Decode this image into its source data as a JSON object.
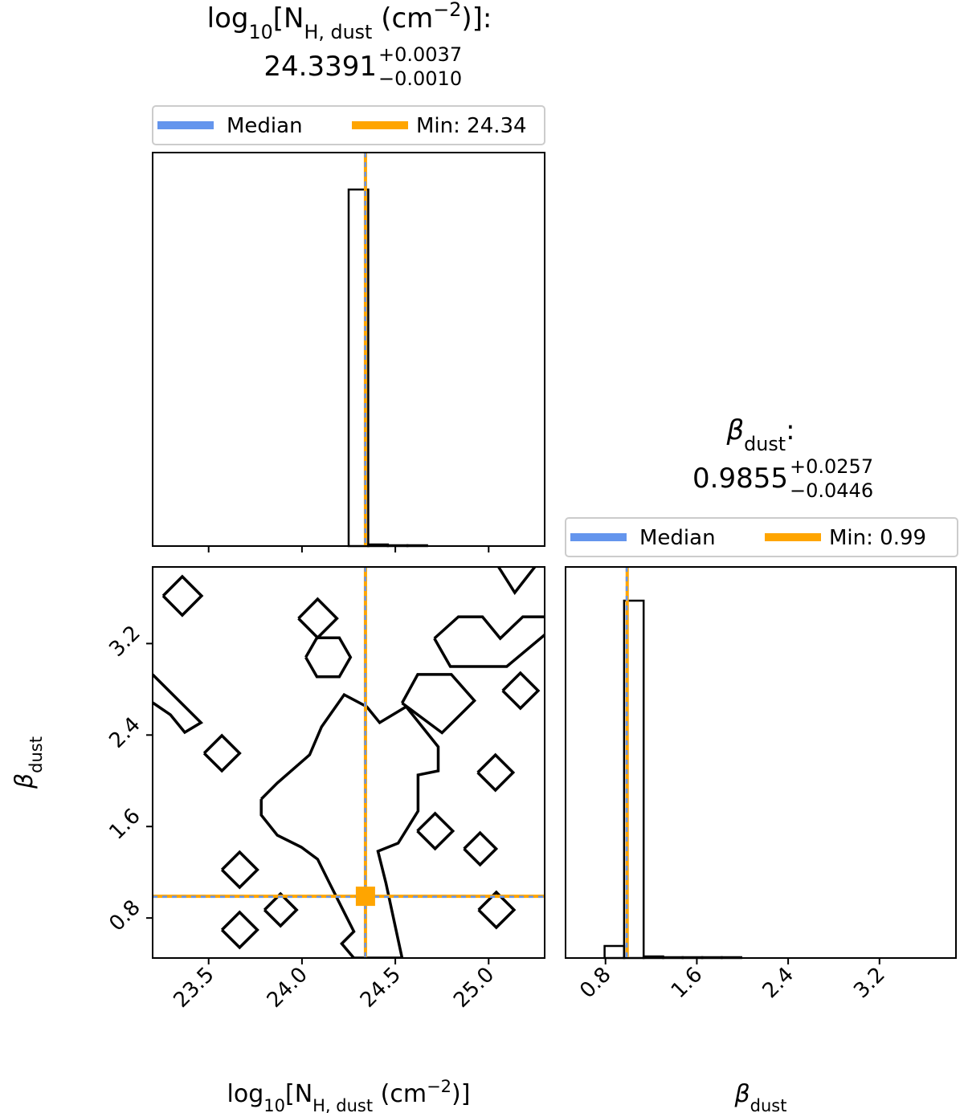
{
  "chart_data": [
    {
      "type": "histogram",
      "title": [
        {
          "text": "log"
        },
        {
          "text": "10",
          "shift": "sub"
        },
        {
          "text": "[N"
        },
        {
          "text": "H, dust",
          "shift": "sub"
        },
        {
          "text": " (cm"
        },
        {
          "text": "−2",
          "shift": "super"
        },
        {
          "text": ")]:"
        }
      ],
      "median": 24.3391,
      "plus": "+0.0037",
      "minus": "−0.0010",
      "series": [
        {
          "name": "Median",
          "color": "#6495ed"
        },
        {
          "name": "Min: 24.34",
          "color": "#ffa500",
          "value": 24.34
        }
      ],
      "bins": [
        23.2,
        23.305,
        23.41,
        23.515,
        23.62,
        23.725,
        23.83,
        23.935,
        24.04,
        24.145,
        24.25,
        24.355,
        24.46,
        24.565,
        24.67,
        24.775,
        24.88,
        24.985,
        25.09,
        25.195,
        25.3
      ],
      "values": [
        0,
        0,
        0,
        0,
        0,
        0,
        0,
        0,
        0,
        0,
        444,
        2,
        1,
        1,
        0,
        0,
        0,
        0,
        0,
        0
      ],
      "xlim": [
        23.2,
        25.3
      ],
      "ylim": [
        0,
        490
      ]
    },
    {
      "type": "contour",
      "xlabel": [
        {
          "text": "log"
        },
        {
          "text": "10",
          "shift": "sub"
        },
        {
          "text": "[N"
        },
        {
          "text": "H, dust",
          "shift": "sub"
        },
        {
          "text": " (cm"
        },
        {
          "text": "−2",
          "shift": "super"
        },
        {
          "text": ")]"
        }
      ],
      "ylabel": [
        {
          "text": "β",
          "italic": true
        },
        {
          "text": "dust",
          "shift": "sub"
        }
      ],
      "xlim": [
        23.2,
        25.3
      ],
      "ylim": [
        0.45,
        3.87
      ],
      "xticks": [
        23.5,
        {
          "value": 24,
          "label": "24.0"
        },
        24.5,
        {
          "value": 25,
          "label": "25.0"
        }
      ],
      "yticks": [
        0.8,
        1.6,
        2.4,
        3.2
      ],
      "contours": [
        {
          "x": [
            23.256,
            23.359,
            23.462,
            23.359,
            23.256
          ],
          "y": [
            3.617,
            3.786,
            3.617,
            3.448,
            3.617
          ]
        },
        {
          "x": [
            23.476,
            23.571,
            23.666,
            23.571,
            23.476
          ],
          "y": [
            2.241,
            2.395,
            2.241,
            2.087,
            2.241
          ]
        },
        {
          "x": [
            23.571,
            23.666,
            23.761,
            23.666,
            23.571
          ],
          "y": [
            1.222,
            1.376,
            1.222,
            1.068,
            1.222
          ]
        },
        {
          "x": [
            23.571,
            23.666,
            23.761,
            23.666,
            23.571
          ],
          "y": [
            0.696,
            0.85,
            0.696,
            0.542,
            0.696
          ]
        },
        {
          "x": [
            23.799,
            23.885,
            23.971,
            23.885,
            23.799
          ],
          "y": [
            0.871,
            1.011,
            0.871,
            0.731,
            0.871
          ]
        },
        {
          "x": [
            24.941,
            25.036,
            25.131,
            25.036,
            24.941
          ],
          "y": [
            2.072,
            2.226,
            2.072,
            1.918,
            2.072
          ]
        },
        {
          "x": [
            24.946,
            25.041,
            25.136,
            25.041,
            24.946
          ],
          "y": [
            0.871,
            1.025,
            0.871,
            0.717,
            0.871
          ]
        },
        {
          "x": [
            24.868,
            24.954,
            25.04,
            24.954,
            24.868
          ],
          "y": [
            1.405,
            1.545,
            1.405,
            1.265,
            1.405
          ]
        },
        {
          "x": [
            24.618,
            24.713,
            24.808,
            24.713,
            24.618
          ],
          "y": [
            1.56,
            1.714,
            1.56,
            1.406,
            1.56
          ]
        },
        {
          "x": [
            25.075,
            25.17,
            25.265,
            25.17,
            25.075
          ],
          "y": [
            2.788,
            2.942,
            2.788,
            2.634,
            2.788
          ]
        },
        {
          "x": [
            23.981,
            24.084,
            24.187,
            24.084,
            23.981
          ],
          "y": [
            3.42,
            3.589,
            3.42,
            3.251,
            3.42
          ]
        },
        {
          "x": [
            24.02,
            24.08,
            24.2,
            24.26,
            24.2,
            24.08,
            24.02
          ],
          "y": [
            3.08,
            3.25,
            3.25,
            3.08,
            2.91,
            2.91,
            3.08
          ]
        },
        {
          "x": [
            24.536,
            24.62,
            24.8,
            24.924,
            24.75,
            24.536
          ],
          "y": [
            2.68,
            2.93,
            2.93,
            2.7,
            2.42,
            2.68
          ]
        },
        {
          "x": [
            24.709,
            24.838,
            24.967,
            25.062,
            25.183,
            25.303,
            25.303,
            25.097,
            24.795,
            24.709
          ],
          "y": [
            3.245,
            3.434,
            3.434,
            3.245,
            3.434,
            3.434,
            3.28,
            2.999,
            2.999,
            3.245
          ]
        },
        {
          "x": [
            25.053,
            25.14,
            25.247
          ],
          "y": [
            3.87,
            3.645,
            3.87
          ]
        },
        {
          "x": [
            23.2,
            23.459,
            23.372,
            23.295,
            23.2
          ],
          "y": [
            2.929,
            2.508,
            2.423,
            2.578,
            2.683
          ]
        },
        {
          "x": [
            23.782,
            23.868,
            24.041,
            24.105,
            24.226,
            24.347,
            24.416,
            24.558,
            24.73,
            24.73,
            24.622,
            24.622,
            24.515,
            24.407,
            24.45,
            24.536,
            24.278,
            24.213,
            24.278,
            24.213,
            24.148,
            24.084,
            23.997,
            23.868,
            23.782,
            23.782
          ],
          "y": [
            1.84,
            1.981,
            2.227,
            2.472,
            2.753,
            2.648,
            2.508,
            2.648,
            2.297,
            2.086,
            2.051,
            1.735,
            1.454,
            1.384,
            1.103,
            0.45,
            0.45,
            0.576,
            0.682,
            0.892,
            1.103,
            1.314,
            1.419,
            1.524,
            1.7,
            1.84
          ]
        }
      ]
    },
    {
      "type": "histogram",
      "title": [
        {
          "text": "β",
          "italic": true
        },
        {
          "text": "dust",
          "shift": "sub"
        },
        {
          "text": ":"
        }
      ],
      "median": 0.9855,
      "plus": "+0.0257",
      "minus": "−0.0446",
      "series": [
        {
          "name": "Median",
          "color": "#6495ed"
        },
        {
          "name": "Min: 0.99",
          "color": "#ffa500",
          "value": 0.99
        }
      ],
      "bins": [
        0.45,
        0.621,
        0.792,
        0.963,
        1.134,
        1.305,
        1.476,
        1.647,
        1.818,
        1.989,
        2.16,
        2.331,
        2.502,
        2.673,
        2.844,
        3.015,
        3.186,
        3.357,
        3.528,
        3.699,
        3.87
      ],
      "values": [
        0,
        0,
        15,
        445,
        2,
        1,
        1,
        1,
        1,
        0,
        0,
        0,
        0,
        0,
        0,
        0,
        0,
        0,
        0,
        0
      ],
      "xlim": [
        0.45,
        3.87
      ],
      "ylim": [
        0,
        487
      ],
      "xticks": [
        0.8,
        1.6,
        2.4,
        3.2
      ],
      "xlabel": [
        {
          "text": "β",
          "italic": true
        },
        {
          "text": "dust",
          "shift": "sub"
        }
      ]
    }
  ]
}
